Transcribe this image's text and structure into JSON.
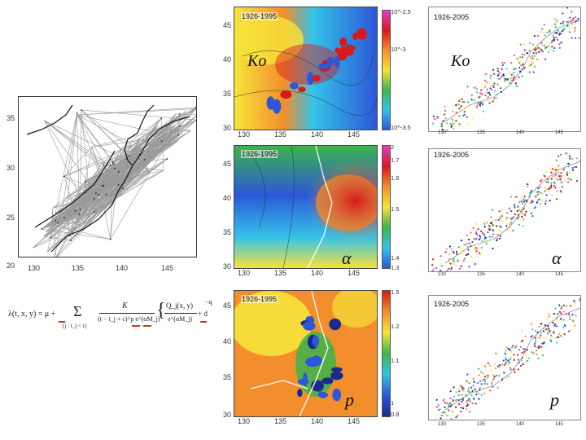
{
  "mesh_panel": {
    "y_ticks": [
      "35",
      "30",
      "25",
      "20"
    ],
    "x_ticks": [
      "130",
      "135",
      "140",
      "145"
    ]
  },
  "formula": {
    "lhs": "λ(t, x, y) = μ +",
    "sum": "Σ",
    "sum_index": "{j : t_j < t}",
    "numerator": "K",
    "denominator": "(t − t_j + c)^p e^(αM_j)",
    "brace_num": "Q_j(x, y)",
    "brace_den": "e^(αM_j)",
    "tail": "+ d",
    "exponent": "−q"
  },
  "panels": [
    {
      "id": "ko-1926-1995",
      "period": "1926-1995",
      "symbol": "Ko",
      "y_ticks": [
        "45",
        "40",
        "35",
        "30"
      ],
      "x_ticks": [
        "130",
        "135",
        "140",
        "145"
      ],
      "colorbar_ticks": [
        "10^-2.5",
        "10^-3",
        "10^-3.5"
      ]
    },
    {
      "id": "ko-1926-2005",
      "period": "1926-2005",
      "symbol": "Ko",
      "x_ticks": [
        "130",
        "135",
        "140",
        "145"
      ]
    },
    {
      "id": "alpha-1926-1995",
      "period": "1926-1995",
      "symbol": "α",
      "y_ticks": [
        "45",
        "40",
        "35",
        "30"
      ],
      "x_ticks": [
        "130",
        "135",
        "140",
        "145"
      ],
      "colorbar_ticks": [
        "2",
        "1.7",
        "1.6",
        "1.5",
        "1.4",
        "1.3"
      ]
    },
    {
      "id": "alpha-1926-2005",
      "period": "1926-2005",
      "symbol": "α",
      "x_ticks": [
        "130",
        "135",
        "140",
        "145"
      ]
    },
    {
      "id": "p-1926-1995",
      "period": "1926-1995",
      "symbol": "p",
      "y_ticks": [
        "45",
        "40",
        "35",
        "30"
      ],
      "x_ticks": [
        "130",
        "135",
        "140",
        "145"
      ],
      "colorbar_ticks": [
        "1.5",
        "1.2",
        "1.1",
        "1",
        "0.8"
      ]
    },
    {
      "id": "p-1926-2005",
      "period": "1926-2005",
      "symbol": "p",
      "x_ticks": [
        "130",
        "135",
        "140",
        "145"
      ]
    }
  ],
  "colors": {
    "red": "#d7191c",
    "orange": "#f28e2b",
    "yellow": "#f7e33a",
    "green": "#3cb44b",
    "cyan": "#35c3e8",
    "blue": "#2b58d8",
    "navy": "#1b2a8a",
    "magenta": "#e23ec0"
  }
}
